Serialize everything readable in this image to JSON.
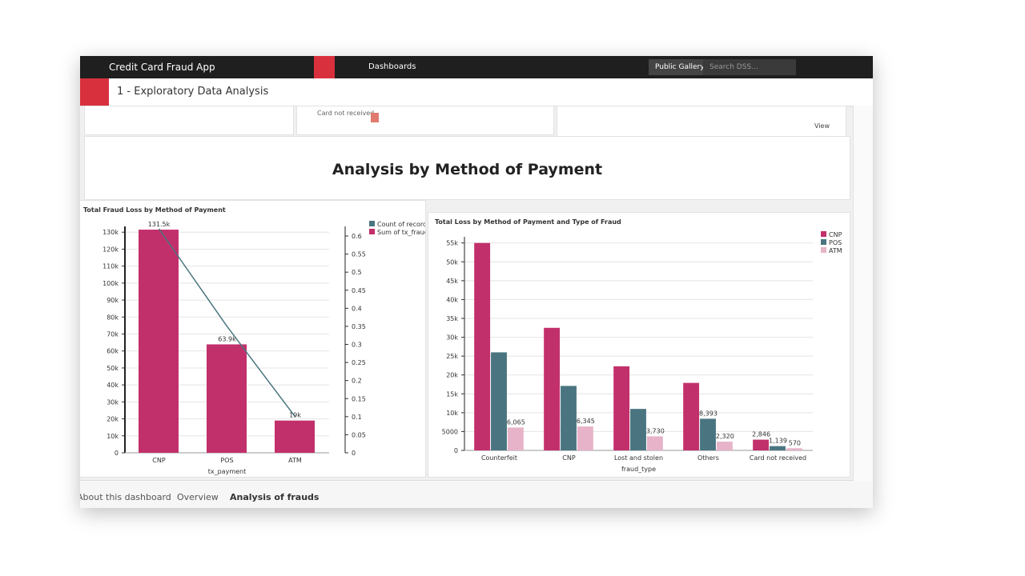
{
  "app": {
    "name": "Credit Card Fraud App",
    "nav": "Dashboards",
    "page_title": "1 - Exploratory Data Analysis",
    "public_gallery": "Public Gallery",
    "search_placeholder": "Search DSS...",
    "view": "View",
    "fragment_label": "Card not received",
    "section_title": "Analysis by Method of Payment",
    "tabs": [
      "About this dashboard",
      "Overview",
      "Analysis of frauds"
    ]
  },
  "chart_data": [
    {
      "type": "bar",
      "title": "Total Fraud Loss by Method of Payment",
      "x_label": "tx_payment",
      "categories": [
        "CNP",
        "POS",
        "ATM"
      ],
      "series": [
        {
          "name": "Count of records",
          "color": "#4a7580",
          "type": "line",
          "axis": "y2",
          "values": [
            0.62,
            0.35,
            0.1
          ]
        },
        {
          "name": "Sum of tx_fraud_loss",
          "color": "#c2306b",
          "values": [
            131500,
            63900,
            19000
          ],
          "value_labels": [
            "131.5k",
            "63.9k",
            "19k"
          ]
        }
      ],
      "ylim": [
        0,
        132000
      ],
      "yticks": [
        0,
        {
          "value": 10000,
          "label": "10k"
        },
        {
          "value": 20000,
          "label": "20k"
        },
        {
          "value": 30000,
          "label": "30k"
        },
        {
          "value": 40000,
          "label": "40k"
        },
        {
          "value": 50000,
          "label": "50k"
        },
        {
          "value": 60000,
          "label": "60k"
        },
        {
          "value": 70000,
          "label": "70k"
        },
        {
          "value": 80000,
          "label": "80k"
        },
        {
          "value": 90000,
          "label": "90k"
        },
        {
          "value": 100000,
          "label": "100k"
        },
        {
          "value": 110000,
          "label": "110k"
        },
        {
          "value": 120000,
          "label": "120k"
        },
        {
          "value": 130000,
          "label": "130k"
        }
      ],
      "y2lim": [
        0,
        0.62
      ],
      "y2ticks": [
        0,
        0.05,
        0.1,
        0.15,
        0.2,
        0.25,
        0.3,
        0.35,
        0.4,
        0.45,
        0.5,
        0.55,
        0.6
      ],
      "grid": true,
      "legend": "right"
    },
    {
      "type": "bar",
      "title": "Total Loss by Method of Payment and Type of Fraud",
      "x_label": "fraud_type",
      "categories": [
        "Counterfeit",
        "CNP",
        "Lost and stolen",
        "Others",
        "Card not received"
      ],
      "series": [
        {
          "name": "CNP",
          "color": "#c2306b",
          "values": [
            55000,
            32500,
            22300,
            17900,
            2846
          ],
          "value_labels": [
            null,
            null,
            null,
            null,
            "2,846"
          ]
        },
        {
          "name": "POS",
          "color": "#4a7580",
          "values": [
            26000,
            17100,
            11000,
            8393,
            1139
          ],
          "value_labels": [
            null,
            null,
            null,
            "8,393",
            "1,139"
          ]
        },
        {
          "name": "ATM",
          "color": "#e6b3c8",
          "values": [
            6065,
            6345,
            3730,
            2320,
            570
          ],
          "value_labels": [
            "6,065",
            "6,345",
            "3,730",
            "2,320",
            "570"
          ]
        }
      ],
      "ylim": [
        0,
        56000
      ],
      "yticks": [
        0,
        5000,
        {
          "value": 10000,
          "label": "10k"
        },
        {
          "value": 15000,
          "label": "15k"
        },
        {
          "value": 20000,
          "label": "20k"
        },
        {
          "value": 25000,
          "label": "25k"
        },
        {
          "value": 30000,
          "label": "30k"
        },
        {
          "value": 35000,
          "label": "35k"
        },
        {
          "value": 40000,
          "label": "40k"
        },
        {
          "value": 45000,
          "label": "45k"
        },
        {
          "value": 50000,
          "label": "50k"
        },
        {
          "value": 55000,
          "label": "55k"
        }
      ],
      "grid": true,
      "legend": "right"
    }
  ]
}
